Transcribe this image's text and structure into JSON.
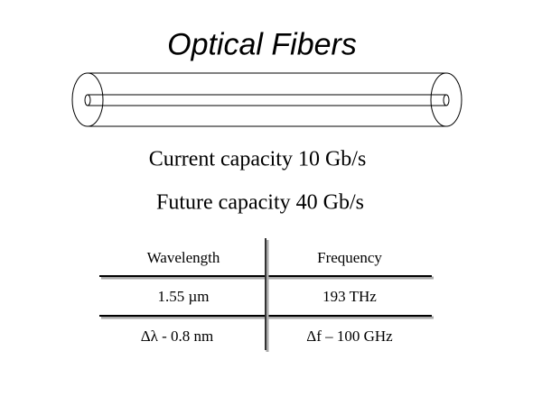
{
  "title": "Optical Fibers",
  "lines": [
    "Current capacity 10 Gb/s",
    "Future capacity 40 Gb/s"
  ],
  "table": {
    "header": [
      "Wavelength",
      "Frequency"
    ],
    "rows": [
      [
        "1.55 µm",
        "193 THz"
      ],
      [
        "Δλ - 0.8 nm",
        "Δf – 100 GHz"
      ]
    ]
  }
}
